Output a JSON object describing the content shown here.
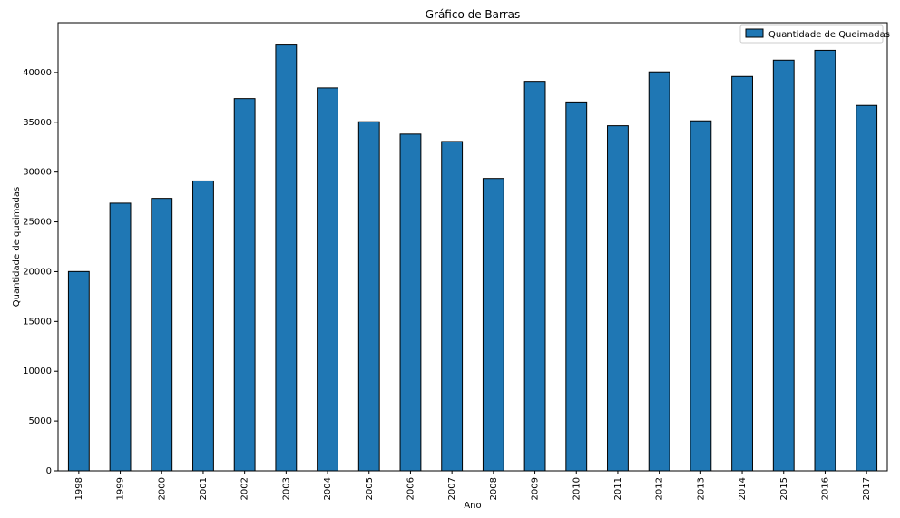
{
  "chart_data": {
    "type": "bar",
    "title": "Gráfico de Barras",
    "xlabel": "Ano",
    "ylabel": "Quantidade de queimadas",
    "categories": [
      "1998",
      "1999",
      "2000",
      "2001",
      "2002",
      "2003",
      "2004",
      "2005",
      "2006",
      "2007",
      "2008",
      "2009",
      "2010",
      "2011",
      "2012",
      "2013",
      "2014",
      "2015",
      "2016",
      "2017"
    ],
    "series": [
      {
        "name": "Quantidade de Queimadas",
        "color": "#1f77b4",
        "values": [
          20010,
          26880,
          27360,
          29110,
          37380,
          42760,
          38450,
          35050,
          33810,
          33070,
          29360,
          39110,
          37040,
          34650,
          40060,
          35140,
          39600,
          41240,
          42230,
          36690
        ]
      }
    ],
    "ylim": [
      0,
      45000
    ],
    "yticks": [
      0,
      5000,
      10000,
      15000,
      20000,
      25000,
      30000,
      35000,
      40000
    ],
    "grid": false,
    "legend_position": "top-right",
    "bar_edge_color": "#000000"
  }
}
